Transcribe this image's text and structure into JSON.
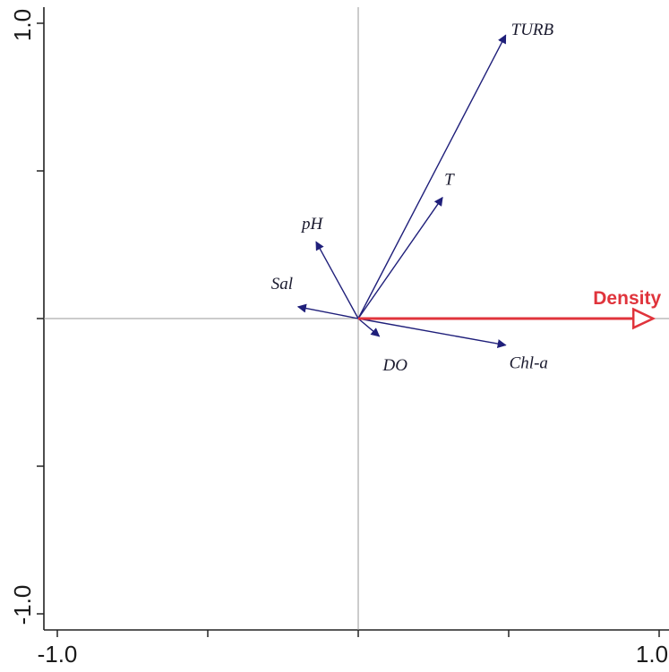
{
  "chart_data": {
    "type": "scatter",
    "title": "",
    "xlabel": "",
    "ylabel": "",
    "xlim": [
      -1.0,
      1.0
    ],
    "ylim": [
      -1.0,
      1.0
    ],
    "x_tick_labels": [
      "-1.0",
      "1.0"
    ],
    "y_tick_labels": [
      "-1.0",
      "1.0"
    ],
    "grid": false,
    "zero_lines": true,
    "series": [
      {
        "name": "",
        "kind": "environmental-variables",
        "color": "#1f1f7a",
        "vectors": [
          {
            "label": "TURB",
            "x": 0.49,
            "y": 0.96
          },
          {
            "label": "T",
            "x": 0.28,
            "y": 0.41
          },
          {
            "label": "pH",
            "x": -0.14,
            "y": 0.26
          },
          {
            "label": "Sal",
            "x": -0.2,
            "y": 0.04
          },
          {
            "label": "DO",
            "x": 0.07,
            "y": -0.06
          },
          {
            "label": "Chl-a",
            "x": 0.49,
            "y": -0.09
          }
        ]
      },
      {
        "name": "",
        "kind": "response-variable",
        "color": "#e0343c",
        "vectors": [
          {
            "label": "Density",
            "x": 0.98,
            "y": 0.0
          }
        ]
      }
    ]
  }
}
